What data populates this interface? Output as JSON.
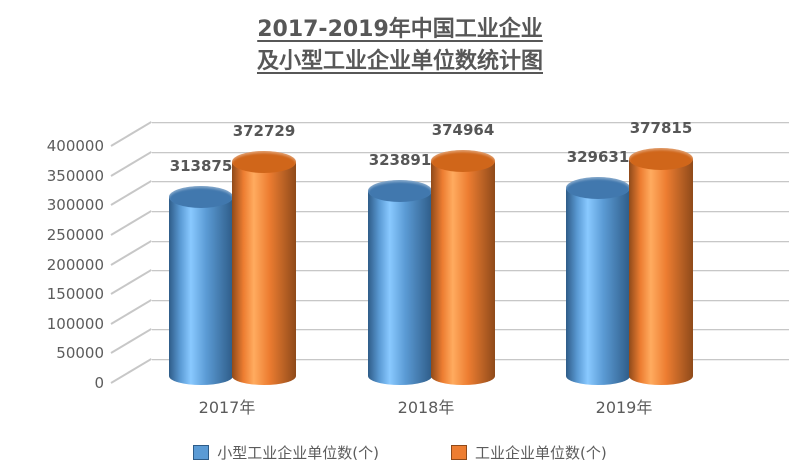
{
  "title": {
    "line1": "2017-2019年中国工业企业",
    "line2": "及小型工业企业单位数统计图"
  },
  "chart_data": {
    "type": "bar",
    "style": "3d-cylinder",
    "categories": [
      "2017年",
      "2018年",
      "2019年"
    ],
    "series": [
      {
        "name": "小型工业企业单位数(个)",
        "color": "#5B9BD5",
        "edge_dark": "#2E5C88",
        "top_color": "#4178AE",
        "values": [
          313875,
          323891,
          329631
        ]
      },
      {
        "name": "工业企业单位数(个)",
        "color": "#ED7D31",
        "edge_dark": "#8F4A1A",
        "top_color": "#D0661A",
        "values": [
          372729,
          374964,
          377815
        ]
      }
    ],
    "ylim": [
      0,
      400000
    ],
    "ytick_step": 50000,
    "yticks": [
      "0",
      "50000",
      "100000",
      "150000",
      "200000",
      "250000",
      "300000",
      "350000",
      "400000"
    ],
    "grid": true,
    "data_labels": true,
    "legend_position": "bottom",
    "colors": {
      "text": "#595959",
      "gridline": "#C7C7C7",
      "background": "#FFFFFF"
    }
  }
}
